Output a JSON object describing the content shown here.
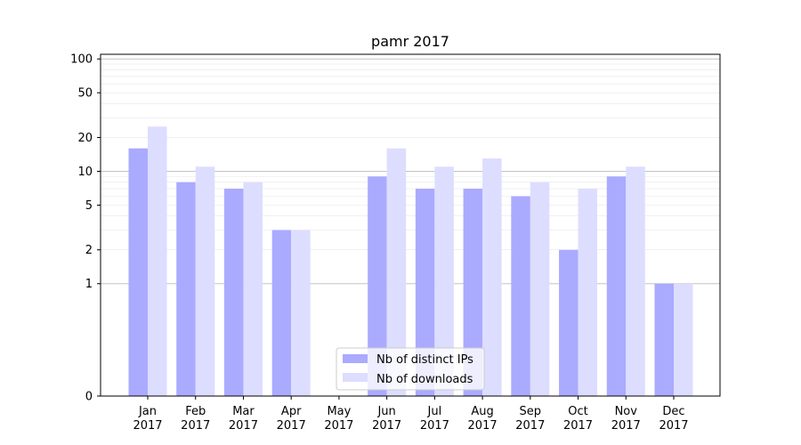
{
  "chart_data": {
    "type": "bar",
    "title": "pamr 2017",
    "xlabel": "",
    "ylabel": "",
    "yscale": "symlog",
    "ylim": [
      0,
      110
    ],
    "yticks": [
      0,
      1,
      2,
      5,
      10,
      20,
      50,
      100
    ],
    "categories": [
      [
        "Jan",
        "2017"
      ],
      [
        "Feb",
        "2017"
      ],
      [
        "Mar",
        "2017"
      ],
      [
        "Apr",
        "2017"
      ],
      [
        "May",
        "2017"
      ],
      [
        "Jun",
        "2017"
      ],
      [
        "Jul",
        "2017"
      ],
      [
        "Aug",
        "2017"
      ],
      [
        "Sep",
        "2017"
      ],
      [
        "Oct",
        "2017"
      ],
      [
        "Nov",
        "2017"
      ],
      [
        "Dec",
        "2017"
      ]
    ],
    "series": [
      {
        "name": "Nb of distinct IPs",
        "color": "#aaaaff",
        "values": [
          16,
          8,
          7,
          3,
          0,
          9,
          7,
          7,
          6,
          2,
          9,
          1
        ]
      },
      {
        "name": "Nb of downloads",
        "color": "#ddddff",
        "values": [
          25,
          11,
          8,
          3,
          0,
          16,
          11,
          13,
          8,
          7,
          11,
          1
        ]
      }
    ],
    "grid": true,
    "legend": "lower-center"
  }
}
